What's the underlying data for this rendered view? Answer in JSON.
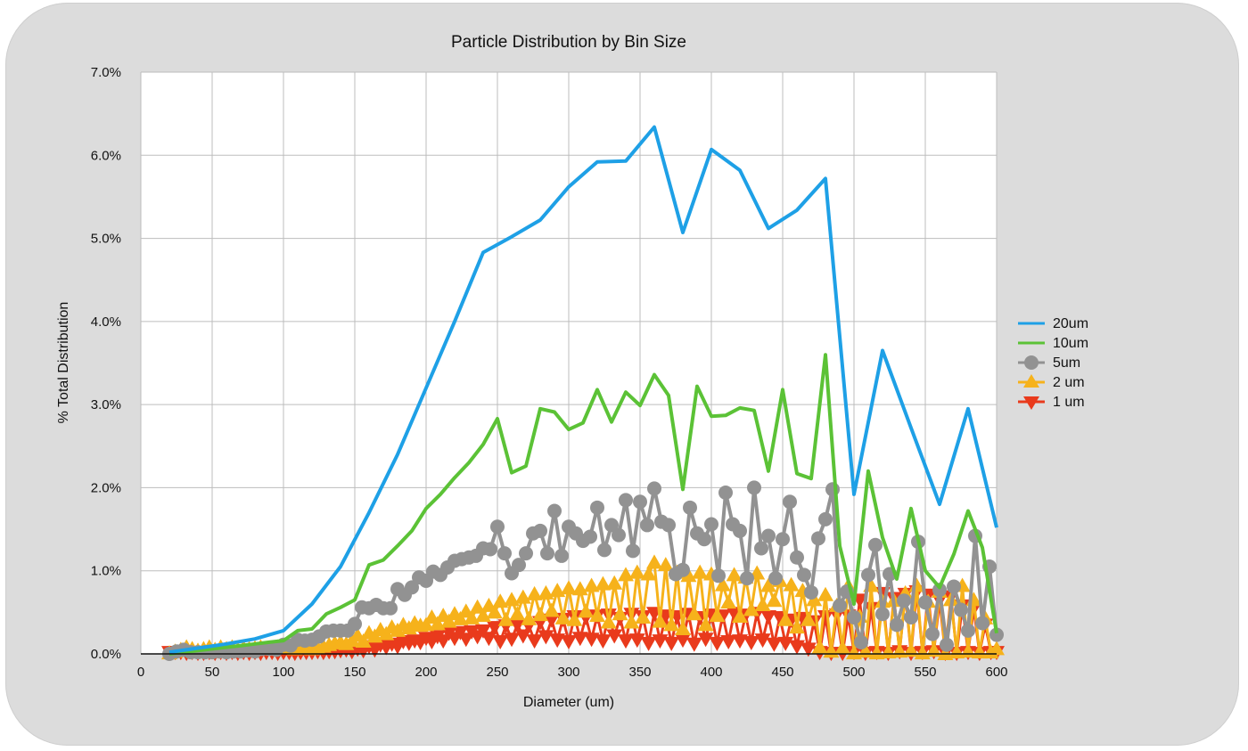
{
  "chart_data": {
    "type": "line",
    "title": "Particle Distribution by Bin Size",
    "xlabel": "Diameter (um)",
    "ylabel": "% Total Distribution",
    "xlim": [
      0,
      600
    ],
    "ylim": [
      0,
      0.07
    ],
    "x_ticks": [
      0,
      50,
      100,
      150,
      200,
      250,
      300,
      350,
      400,
      450,
      500,
      550,
      600
    ],
    "x_tick_labels": [
      "0",
      "50",
      "100",
      "150",
      "200",
      "250",
      "300",
      "350",
      "400",
      "450",
      "500",
      "550",
      "600"
    ],
    "y_ticks": [
      0,
      0.01,
      0.02,
      0.03,
      0.04,
      0.05,
      0.06,
      0.07
    ],
    "y_tick_labels": [
      "0.0%",
      "1.0%",
      "2.0%",
      "3.0%",
      "4.0%",
      "5.0%",
      "6.0%",
      "7.0%"
    ],
    "grid": true,
    "legend_position": "right",
    "series": [
      {
        "name": "20um",
        "color": "#1ea0e6",
        "marker": "none",
        "x": [
          20,
          40,
          60,
          80,
          100,
          120,
          140,
          160,
          180,
          200,
          220,
          240,
          260,
          280,
          300,
          320,
          340,
          360,
          380,
          400,
          420,
          440,
          460,
          480,
          500,
          520,
          540,
          560,
          580,
          600
        ],
        "y": [
          0.0002,
          0.0007,
          0.0012,
          0.0018,
          0.0028,
          0.006,
          0.0105,
          0.017,
          0.024,
          0.032,
          0.04,
          0.0483,
          0.0502,
          0.0522,
          0.0562,
          0.0592,
          0.0593,
          0.0634,
          0.0507,
          0.0607,
          0.0582,
          0.0512,
          0.0534,
          0.0572,
          0.0192,
          0.0365,
          0.0272,
          0.018,
          0.0295,
          0.0152
        ]
      },
      {
        "name": "10um",
        "color": "#5bc236",
        "marker": "none",
        "x": [
          20,
          30,
          40,
          50,
          60,
          70,
          80,
          90,
          100,
          110,
          120,
          130,
          140,
          150,
          160,
          170,
          180,
          190,
          200,
          210,
          220,
          230,
          240,
          250,
          260,
          270,
          280,
          290,
          300,
          310,
          320,
          330,
          340,
          350,
          360,
          370,
          380,
          390,
          400,
          410,
          420,
          430,
          440,
          450,
          460,
          470,
          480,
          490,
          500,
          510,
          520,
          530,
          540,
          550,
          560,
          570,
          580,
          590,
          600
        ],
        "y": [
          0.0,
          0.0002,
          0.0004,
          0.0006,
          0.0008,
          0.001,
          0.0012,
          0.0014,
          0.0016,
          0.0028,
          0.003,
          0.0048,
          0.0056,
          0.0065,
          0.0107,
          0.0113,
          0.013,
          0.0148,
          0.0175,
          0.0192,
          0.0212,
          0.023,
          0.0252,
          0.0283,
          0.0218,
          0.0226,
          0.0295,
          0.0291,
          0.027,
          0.0278,
          0.0318,
          0.0279,
          0.0315,
          0.0299,
          0.0336,
          0.0311,
          0.0198,
          0.0322,
          0.0286,
          0.0287,
          0.0296,
          0.0293,
          0.022,
          0.0318,
          0.0217,
          0.0211,
          0.036,
          0.013,
          0.006,
          0.022,
          0.014,
          0.009,
          0.0175,
          0.01,
          0.008,
          0.012,
          0.0172,
          0.0128,
          0.0025
        ]
      },
      {
        "name": "5um",
        "color": "#929292",
        "marker": "circle",
        "x": [
          20,
          25,
          30,
          35,
          40,
          45,
          50,
          55,
          60,
          65,
          70,
          75,
          80,
          85,
          90,
          95,
          100,
          105,
          110,
          115,
          120,
          125,
          130,
          135,
          140,
          145,
          150,
          155,
          160,
          165,
          170,
          175,
          180,
          185,
          190,
          195,
          200,
          205,
          210,
          215,
          220,
          225,
          230,
          235,
          240,
          245,
          250,
          255,
          260,
          265,
          270,
          275,
          280,
          285,
          290,
          295,
          300,
          305,
          310,
          315,
          320,
          325,
          330,
          335,
          340,
          345,
          350,
          355,
          360,
          365,
          370,
          375,
          380,
          385,
          390,
          395,
          400,
          405,
          410,
          415,
          420,
          425,
          430,
          435,
          440,
          445,
          450,
          455,
          460,
          465,
          470,
          475,
          480,
          485,
          490,
          495,
          500,
          505,
          510,
          515,
          520,
          525,
          530,
          535,
          540,
          545,
          550,
          555,
          560,
          565,
          570,
          575,
          580,
          585,
          590,
          595,
          600
        ],
        "y": [
          0.0,
          0.0003,
          0.0005,
          0.0002,
          0.0002,
          0.0002,
          0.0002,
          0.0003,
          0.0002,
          0.0003,
          0.0003,
          0.0004,
          0.0003,
          0.0006,
          0.0006,
          0.0005,
          0.0011,
          0.001,
          0.0017,
          0.0016,
          0.0017,
          0.0021,
          0.0027,
          0.0028,
          0.0028,
          0.0028,
          0.0036,
          0.0056,
          0.0055,
          0.0059,
          0.0055,
          0.0055,
          0.0078,
          0.0071,
          0.008,
          0.0092,
          0.0088,
          0.0099,
          0.0095,
          0.0104,
          0.0112,
          0.0114,
          0.0116,
          0.0118,
          0.0127,
          0.0126,
          0.0153,
          0.0121,
          0.0097,
          0.0107,
          0.0121,
          0.0145,
          0.0148,
          0.0121,
          0.0172,
          0.0118,
          0.0153,
          0.0145,
          0.0136,
          0.0141,
          0.0176,
          0.0125,
          0.0155,
          0.0143,
          0.0185,
          0.0124,
          0.0183,
          0.0155,
          0.0199,
          0.0159,
          0.0155,
          0.0096,
          0.0101,
          0.0176,
          0.0145,
          0.0138,
          0.0156,
          0.0094,
          0.0194,
          0.0156,
          0.0148,
          0.0091,
          0.02,
          0.0127,
          0.0142,
          0.0091,
          0.0138,
          0.0183,
          0.0116,
          0.0095,
          0.0074,
          0.0139,
          0.0162,
          0.0198,
          0.0058,
          0.0075,
          0.0044,
          0.0014,
          0.0095,
          0.0131,
          0.0048,
          0.0096,
          0.0035,
          0.0064,
          0.0044,
          0.0135,
          0.0062,
          0.0024,
          0.0077,
          0.0011,
          0.0081,
          0.0053,
          0.0028,
          0.0142,
          0.0037,
          0.0105,
          0.0023
        ]
      },
      {
        "name": "2 um",
        "color": "#f6b21b",
        "marker": "triangle-up",
        "x": [
          20,
          24,
          28,
          32,
          36,
          40,
          44,
          48,
          52,
          56,
          60,
          64,
          68,
          72,
          76,
          80,
          84,
          88,
          92,
          96,
          100,
          104,
          108,
          112,
          116,
          120,
          124,
          128,
          132,
          136,
          140,
          144,
          148,
          152,
          156,
          160,
          164,
          168,
          172,
          176,
          180,
          184,
          188,
          192,
          196,
          200,
          204,
          208,
          212,
          216,
          220,
          224,
          228,
          232,
          236,
          240,
          244,
          248,
          252,
          256,
          260,
          264,
          268,
          272,
          276,
          280,
          284,
          288,
          292,
          296,
          300,
          304,
          308,
          312,
          316,
          320,
          324,
          328,
          332,
          336,
          340,
          344,
          348,
          352,
          356,
          360,
          364,
          368,
          372,
          376,
          380,
          384,
          388,
          392,
          396,
          400,
          404,
          408,
          412,
          416,
          420,
          424,
          428,
          432,
          436,
          440,
          444,
          448,
          452,
          456,
          460,
          464,
          468,
          472,
          476,
          480,
          484,
          488,
          492,
          496,
          500,
          504,
          508,
          512,
          516,
          520,
          524,
          528,
          532,
          536,
          540,
          544,
          548,
          552,
          556,
          560,
          564,
          568,
          572,
          576,
          580,
          584,
          588,
          592,
          596,
          600
        ],
        "y": [
          0.0001,
          0.0003,
          0.0005,
          0.0008,
          0.0006,
          0.0004,
          0.0006,
          0.0008,
          0.0005,
          0.0008,
          0.0006,
          0.0008,
          0.0005,
          0.0007,
          0.0006,
          0.0007,
          0.0008,
          0.0006,
          0.0007,
          0.0008,
          0.0007,
          0.0008,
          0.0006,
          0.0008,
          0.0009,
          0.0006,
          0.0007,
          0.0009,
          0.0011,
          0.0013,
          0.0014,
          0.0012,
          0.0016,
          0.0022,
          0.0015,
          0.0025,
          0.0021,
          0.0029,
          0.0024,
          0.0032,
          0.0028,
          0.0035,
          0.0031,
          0.0037,
          0.0034,
          0.0035,
          0.0044,
          0.0036,
          0.0046,
          0.0039,
          0.0048,
          0.0042,
          0.0051,
          0.0043,
          0.0056,
          0.0046,
          0.0058,
          0.005,
          0.0063,
          0.0041,
          0.0065,
          0.0048,
          0.0068,
          0.0042,
          0.0072,
          0.0047,
          0.0073,
          0.0052,
          0.0076,
          0.0043,
          0.0079,
          0.0041,
          0.0078,
          0.0051,
          0.0082,
          0.0046,
          0.0084,
          0.0038,
          0.0085,
          0.0048,
          0.0095,
          0.0038,
          0.0098,
          0.0044,
          0.0096,
          0.011,
          0.0039,
          0.0107,
          0.0035,
          0.0098,
          0.003,
          0.0094,
          0.0048,
          0.0098,
          0.0035,
          0.0096,
          0.0046,
          0.0083,
          0.0062,
          0.0095,
          0.0045,
          0.0092,
          0.0053,
          0.0097,
          0.0059,
          0.0082,
          0.0064,
          0.0088,
          0.0041,
          0.0083,
          0.0032,
          0.0076,
          0.0041,
          0.0065,
          0.0008,
          0.0071,
          0.0003,
          0.0058,
          0.0007,
          0.0082,
          0.0001,
          0.0045,
          0.0003,
          0.0082,
          0.0001,
          0.0063,
          0.0002,
          0.0064,
          0.0003,
          0.0073,
          0.0004,
          0.0082,
          0.0001,
          0.0063,
          0.0004,
          0.0075,
          0.0,
          0.0065,
          0.0002,
          0.0082,
          0.0003,
          0.0065,
          0.0002,
          0.0043,
          0.0002,
          0.0006
        ]
      },
      {
        "name": "1 um",
        "color": "#e93a1c",
        "marker": "triangle-down",
        "x": [
          20,
          24,
          28,
          32,
          36,
          40,
          44,
          48,
          52,
          56,
          60,
          64,
          68,
          72,
          76,
          80,
          84,
          88,
          92,
          96,
          100,
          104,
          108,
          112,
          116,
          120,
          124,
          128,
          132,
          136,
          140,
          144,
          148,
          152,
          156,
          160,
          164,
          168,
          172,
          176,
          180,
          184,
          188,
          192,
          196,
          200,
          204,
          208,
          212,
          216,
          220,
          224,
          228,
          232,
          236,
          240,
          244,
          248,
          252,
          256,
          260,
          264,
          268,
          272,
          276,
          280,
          284,
          288,
          292,
          296,
          300,
          304,
          308,
          312,
          316,
          320,
          324,
          328,
          332,
          336,
          340,
          344,
          348,
          352,
          356,
          360,
          364,
          368,
          372,
          376,
          380,
          384,
          388,
          392,
          396,
          400,
          404,
          408,
          412,
          416,
          420,
          424,
          428,
          432,
          436,
          440,
          444,
          448,
          452,
          456,
          460,
          464,
          468,
          472,
          476,
          480,
          484,
          488,
          492,
          496,
          500,
          504,
          508,
          512,
          516,
          520,
          524,
          528,
          532,
          536,
          540,
          544,
          548,
          552,
          556,
          560,
          564,
          568,
          572,
          576,
          580,
          584,
          588,
          592,
          596,
          600
        ],
        "y": [
          0.0002,
          0.0002,
          0.0002,
          0.0001,
          0.0002,
          0.0001,
          0.0001,
          0.0002,
          0.0001,
          0.0002,
          0.0001,
          0.0002,
          0.0001,
          0.0002,
          0.0001,
          0.0002,
          0.0001,
          0.0002,
          0.0002,
          0.0001,
          0.0002,
          0.0002,
          0.0001,
          0.0002,
          0.0002,
          0.0002,
          0.0003,
          0.0002,
          0.0003,
          0.0003,
          0.0004,
          0.0005,
          0.0003,
          0.0006,
          0.0004,
          0.0009,
          0.0005,
          0.0011,
          0.0008,
          0.0012,
          0.0009,
          0.0015,
          0.0013,
          0.0016,
          0.0014,
          0.0019,
          0.0015,
          0.0021,
          0.0016,
          0.0025,
          0.0019,
          0.0026,
          0.0018,
          0.0027,
          0.0021,
          0.0028,
          0.0019,
          0.0032,
          0.0015,
          0.0034,
          0.0018,
          0.0035,
          0.0022,
          0.0034,
          0.0016,
          0.0038,
          0.0021,
          0.0041,
          0.0017,
          0.0042,
          0.0015,
          0.0045,
          0.0019,
          0.0044,
          0.0018,
          0.0046,
          0.0016,
          0.0047,
          0.0022,
          0.0043,
          0.0016,
          0.0048,
          0.0017,
          0.0045,
          0.0013,
          0.0049,
          0.0016,
          0.0046,
          0.0013,
          0.0045,
          0.0017,
          0.0048,
          0.0012,
          0.0044,
          0.0018,
          0.0047,
          0.0013,
          0.0046,
          0.0015,
          0.0049,
          0.0016,
          0.0047,
          0.0014,
          0.0049,
          0.0017,
          0.0045,
          0.0012,
          0.0044,
          0.0013,
          0.0041,
          0.0009,
          0.0043,
          0.0006,
          0.0039,
          0.0002,
          0.0045,
          0.0001,
          0.0047,
          0.0001,
          0.0046,
          0.0002,
          0.0065,
          0.0001,
          0.0055,
          0.0002,
          0.0073,
          0.0001,
          0.0067,
          0.0003,
          0.0072,
          0.0001,
          0.0075,
          0.0002,
          0.0071,
          0.0003,
          0.0065,
          0.0001,
          0.0069,
          0.0001,
          0.0058,
          0.0002,
          0.0055,
          0.0001,
          0.0035,
          0.0002,
          0.0002
        ]
      }
    ]
  }
}
